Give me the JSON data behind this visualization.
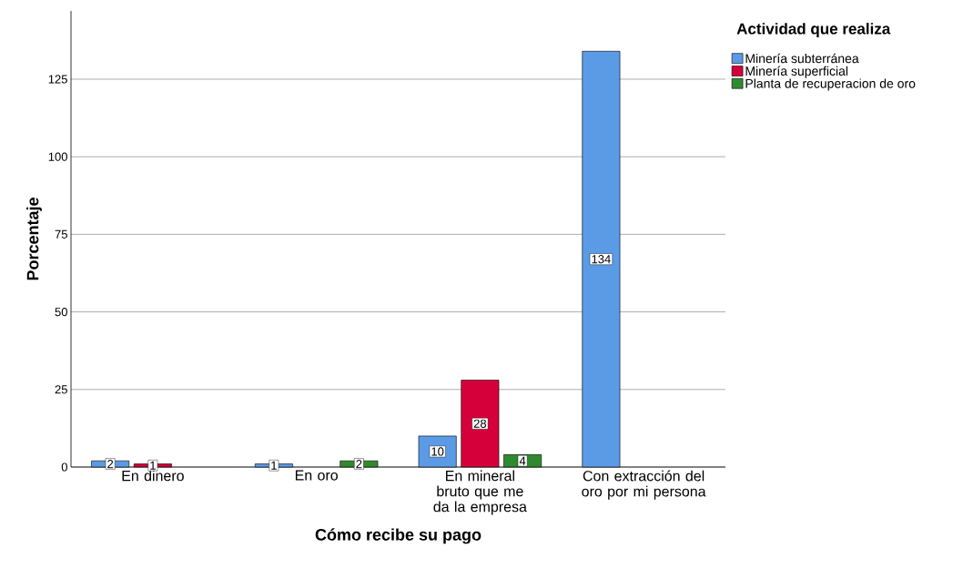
{
  "chart_data": {
    "type": "bar",
    "xlabel": "Cómo recibe su pago",
    "ylabel": "Porcentaje",
    "legend_title": "Actividad que realiza",
    "categories": [
      "En dinero",
      "En oro",
      "En mineral bruto que me da la empresa",
      "Con extracción del oro por mi persona"
    ],
    "series": [
      {
        "name": "Minería subterránea",
        "color": "#5b9be6",
        "values": [
          2,
          1,
          10,
          134
        ]
      },
      {
        "name": "Minería superficial",
        "color": "#d5003a",
        "values": [
          1,
          null,
          28,
          null
        ]
      },
      {
        "name": "Planta de recuperacion de oro",
        "color": "#2f8a2f",
        "values": [
          null,
          2,
          4,
          null
        ]
      }
    ],
    "ylim": [
      0,
      147
    ],
    "yticks": [
      0,
      25,
      50,
      75,
      100,
      125
    ],
    "grid": "y",
    "legend": "top right",
    "data_labels": true
  }
}
